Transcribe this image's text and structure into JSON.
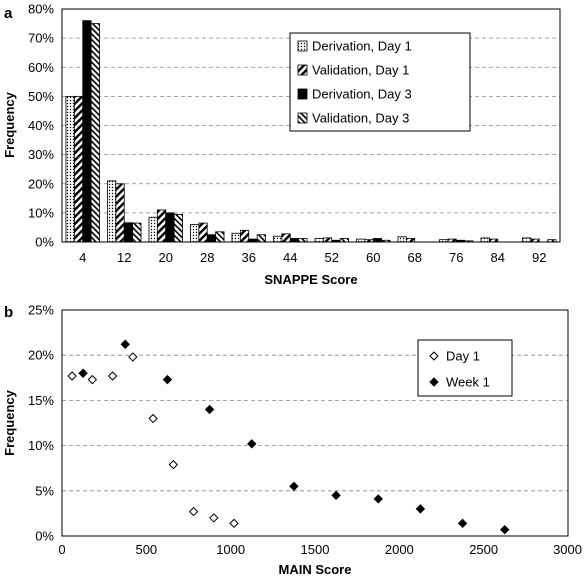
{
  "chart_data": [
    {
      "type": "bar",
      "panel_label": "a",
      "title": "",
      "xlabel": "SNAPPE Score",
      "ylabel": "Frequency",
      "categories": [
        "4",
        "12",
        "20",
        "28",
        "36",
        "44",
        "52",
        "60",
        "68",
        "76",
        "84",
        "92"
      ],
      "yticks": [
        "0%",
        "10%",
        "20%",
        "30%",
        "40%",
        "50%",
        "60%",
        "70%",
        "80%"
      ],
      "ylim": [
        0,
        0.8
      ],
      "grid": true,
      "legend_position": "top-right",
      "series": [
        {
          "name": "Derivation, Day 1",
          "pattern": "dotted",
          "values": [
            0.5,
            0.21,
            0.085,
            0.06,
            0.03,
            0.02,
            0.012,
            0.01,
            0.018,
            0.008,
            0.014,
            0.014
          ]
        },
        {
          "name": "Validation, Day 1",
          "pattern": "hatch-forward",
          "values": [
            0.5,
            0.2,
            0.11,
            0.065,
            0.04,
            0.028,
            0.014,
            0.008,
            0.012,
            0.01,
            0.01,
            0.01
          ]
        },
        {
          "name": "Derivation, Day 3",
          "pattern": "solid",
          "values": [
            0.76,
            0.066,
            0.1,
            0.025,
            0.01,
            0.012,
            0.006,
            0.012,
            0.0,
            0.006,
            0.0,
            0.0
          ]
        },
        {
          "name": "Validation, Day 3",
          "pattern": "hatch-back",
          "values": [
            0.75,
            0.065,
            0.095,
            0.035,
            0.025,
            0.012,
            0.012,
            0.006,
            0.0,
            0.004,
            0.0,
            0.008
          ]
        }
      ]
    },
    {
      "type": "scatter",
      "panel_label": "b",
      "title": "",
      "xlabel": "MAIN Score",
      "ylabel": "Frequency",
      "xlim": [
        0,
        3000
      ],
      "ylim": [
        0,
        0.25
      ],
      "xticks": [
        "0",
        "500",
        "1000",
        "1500",
        "2000",
        "2500",
        "3000"
      ],
      "yticks": [
        "0%",
        "5%",
        "10%",
        "15%",
        "20%",
        "25%"
      ],
      "grid": true,
      "legend_position": "top-right",
      "series": [
        {
          "name": "Day 1",
          "marker": "open-diamond",
          "points": [
            {
              "x": 60,
              "y": 0.177
            },
            {
              "x": 180,
              "y": 0.173
            },
            {
              "x": 300,
              "y": 0.177
            },
            {
              "x": 420,
              "y": 0.198
            },
            {
              "x": 540,
              "y": 0.13
            },
            {
              "x": 660,
              "y": 0.079
            },
            {
              "x": 780,
              "y": 0.027
            },
            {
              "x": 900,
              "y": 0.02
            },
            {
              "x": 1020,
              "y": 0.014
            }
          ]
        },
        {
          "name": "Week 1",
          "marker": "filled-diamond",
          "points": [
            {
              "x": 125,
              "y": 0.18
            },
            {
              "x": 375,
              "y": 0.212
            },
            {
              "x": 625,
              "y": 0.173
            },
            {
              "x": 875,
              "y": 0.14
            },
            {
              "x": 1125,
              "y": 0.102
            },
            {
              "x": 1375,
              "y": 0.055
            },
            {
              "x": 1625,
              "y": 0.045
            },
            {
              "x": 1875,
              "y": 0.041
            },
            {
              "x": 2125,
              "y": 0.03
            },
            {
              "x": 2375,
              "y": 0.014
            },
            {
              "x": 2625,
              "y": 0.007
            }
          ]
        }
      ]
    }
  ]
}
